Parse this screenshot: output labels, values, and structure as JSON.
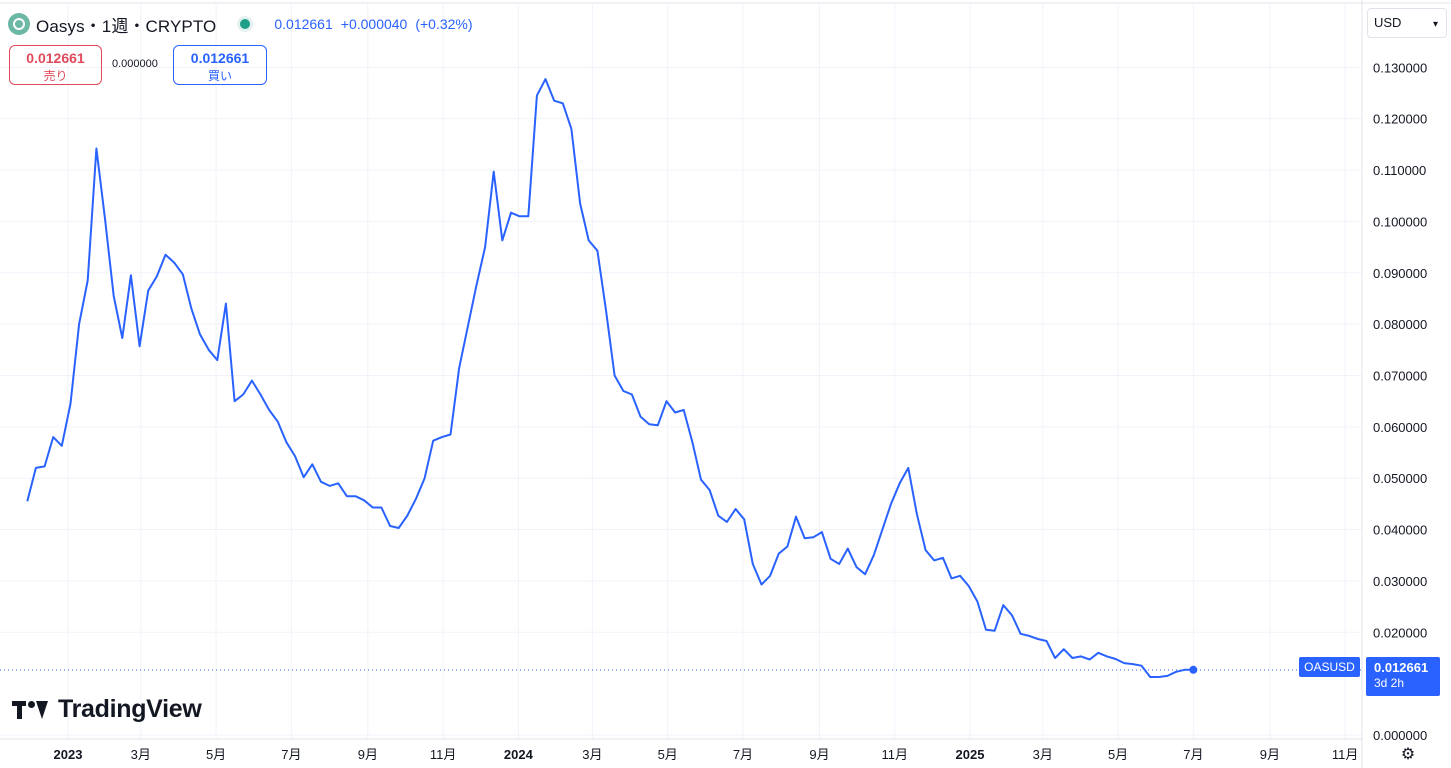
{
  "header": {
    "title": "Oasys・1週・CRYPTO",
    "last": "0.012661",
    "change": "+0.000040",
    "change_pct": "(+0.32%)"
  },
  "trade": {
    "sell_price": "0.012661",
    "sell_label": "売り",
    "spread": "0.000000",
    "buy_price": "0.012661",
    "buy_label": "買い"
  },
  "currency": "USD",
  "brand": "TradingView",
  "price_tag": {
    "symbol": "OASUSD",
    "price": "0.012661",
    "countdown": "3d 2h"
  },
  "icons": {
    "logo": "oasys-logo-icon",
    "settings": "settings-gear-icon",
    "currency_caret": "chevron-down-icon"
  },
  "colors": {
    "line": "#2962ff",
    "grid": "#f0f3fa",
    "text": "#131722",
    "sell": "#e04a5a",
    "live": "#1f9e8a"
  },
  "chart_data": {
    "type": "line",
    "title": "Oasys・1週・CRYPTO",
    "xlabel": "",
    "ylabel": "",
    "ylim": [
      0,
      0.132
    ],
    "grid": true,
    "y_ticks": [
      "0.000000",
      "0.020000",
      "0.030000",
      "0.040000",
      "0.050000",
      "0.060000",
      "0.070000",
      "0.080000",
      "0.090000",
      "0.100000",
      "0.110000",
      "0.120000",
      "0.130000"
    ],
    "x_ticks": [
      {
        "label": "2023",
        "date": "2023-01-01",
        "bold": true
      },
      {
        "label": "3月",
        "date": "2023-03-01"
      },
      {
        "label": "5月",
        "date": "2023-05-01"
      },
      {
        "label": "7月",
        "date": "2023-07-01"
      },
      {
        "label": "9月",
        "date": "2023-09-01"
      },
      {
        "label": "11月",
        "date": "2023-11-01"
      },
      {
        "label": "2024",
        "date": "2024-01-01",
        "bold": true
      },
      {
        "label": "3月",
        "date": "2024-03-01"
      },
      {
        "label": "5月",
        "date": "2024-05-01"
      },
      {
        "label": "7月",
        "date": "2024-07-01"
      },
      {
        "label": "9月",
        "date": "2024-09-01"
      },
      {
        "label": "11月",
        "date": "2024-11-01"
      },
      {
        "label": "2025",
        "date": "2025-01-01",
        "bold": true
      },
      {
        "label": "3月",
        "date": "2025-03-01"
      },
      {
        "label": "5月",
        "date": "2025-05-01"
      },
      {
        "label": "7月",
        "date": "2025-07-01"
      },
      {
        "label": "9月",
        "date": "2025-09-01"
      },
      {
        "label": "11月",
        "date": "2025-11-01"
      }
    ],
    "series": [
      {
        "color": "#2962ff",
        "points": [
          [
            "2022-11-29",
            0.0455
          ],
          [
            "2022-12-06",
            0.052
          ],
          [
            "2022-12-13",
            0.0523
          ],
          [
            "2022-12-20",
            0.058
          ],
          [
            "2022-12-27",
            0.0563
          ],
          [
            "2023-01-03",
            0.0645
          ],
          [
            "2023-01-10",
            0.08
          ],
          [
            "2023-01-17",
            0.0885
          ],
          [
            "2023-01-24",
            0.1142
          ],
          [
            "2023-01-31",
            0.1005
          ],
          [
            "2023-02-07",
            0.0855
          ],
          [
            "2023-02-14",
            0.0773
          ],
          [
            "2023-02-21",
            0.0895
          ],
          [
            "2023-02-28",
            0.0757
          ],
          [
            "2023-03-07",
            0.0865
          ],
          [
            "2023-03-14",
            0.0893
          ],
          [
            "2023-03-21",
            0.0935
          ],
          [
            "2023-03-28",
            0.092
          ],
          [
            "2023-04-04",
            0.0897
          ],
          [
            "2023-04-11",
            0.083
          ],
          [
            "2023-04-18",
            0.078
          ],
          [
            "2023-04-25",
            0.075
          ],
          [
            "2023-05-02",
            0.073
          ],
          [
            "2023-05-09",
            0.084
          ],
          [
            "2023-05-16",
            0.065
          ],
          [
            "2023-05-23",
            0.0663
          ],
          [
            "2023-05-30",
            0.069
          ],
          [
            "2023-06-06",
            0.0663
          ],
          [
            "2023-06-13",
            0.0633
          ],
          [
            "2023-06-20",
            0.061
          ],
          [
            "2023-06-27",
            0.057
          ],
          [
            "2023-07-04",
            0.0543
          ],
          [
            "2023-07-11",
            0.0502
          ],
          [
            "2023-07-18",
            0.0527
          ],
          [
            "2023-07-25",
            0.0493
          ],
          [
            "2023-08-01",
            0.0485
          ],
          [
            "2023-08-08",
            0.049
          ],
          [
            "2023-08-15",
            0.0465
          ],
          [
            "2023-08-22",
            0.0465
          ],
          [
            "2023-08-29",
            0.0457
          ],
          [
            "2023-09-05",
            0.0443
          ],
          [
            "2023-09-12",
            0.0443
          ],
          [
            "2023-09-19",
            0.0407
          ],
          [
            "2023-09-26",
            0.0403
          ],
          [
            "2023-10-03",
            0.0427
          ],
          [
            "2023-10-10",
            0.046
          ],
          [
            "2023-10-17",
            0.05
          ],
          [
            "2023-10-24",
            0.0573
          ],
          [
            "2023-10-31",
            0.058
          ],
          [
            "2023-11-07",
            0.0585
          ],
          [
            "2023-11-14",
            0.0715
          ],
          [
            "2023-11-21",
            0.0795
          ],
          [
            "2023-11-28",
            0.0875
          ],
          [
            "2023-12-05",
            0.095
          ],
          [
            "2023-12-12",
            0.1097
          ],
          [
            "2023-12-19",
            0.0963
          ],
          [
            "2023-12-26",
            0.1017
          ],
          [
            "2024-01-02",
            0.101
          ],
          [
            "2024-01-09",
            0.101
          ],
          [
            "2024-01-16",
            0.1245
          ],
          [
            "2024-01-23",
            0.1277
          ],
          [
            "2024-01-30",
            0.1235
          ],
          [
            "2024-02-06",
            0.123
          ],
          [
            "2024-02-13",
            0.118
          ],
          [
            "2024-02-20",
            0.1035
          ],
          [
            "2024-02-27",
            0.0963
          ],
          [
            "2024-03-05",
            0.0943
          ],
          [
            "2024-03-12",
            0.0827
          ],
          [
            "2024-03-19",
            0.07
          ],
          [
            "2024-03-26",
            0.067
          ],
          [
            "2024-04-02",
            0.0663
          ],
          [
            "2024-04-09",
            0.062
          ],
          [
            "2024-04-16",
            0.0605
          ],
          [
            "2024-04-23",
            0.0603
          ],
          [
            "2024-04-30",
            0.065
          ],
          [
            "2024-05-07",
            0.0628
          ],
          [
            "2024-05-14",
            0.0633
          ],
          [
            "2024-05-21",
            0.057
          ],
          [
            "2024-05-28",
            0.0497
          ],
          [
            "2024-06-04",
            0.0477
          ],
          [
            "2024-06-11",
            0.0427
          ],
          [
            "2024-06-18",
            0.0415
          ],
          [
            "2024-06-25",
            0.044
          ],
          [
            "2024-07-02",
            0.042
          ],
          [
            "2024-07-09",
            0.0333
          ],
          [
            "2024-07-16",
            0.0293
          ],
          [
            "2024-07-23",
            0.031
          ],
          [
            "2024-07-30",
            0.0353
          ],
          [
            "2024-08-06",
            0.0367
          ],
          [
            "2024-08-13",
            0.0425
          ],
          [
            "2024-08-20",
            0.0383
          ],
          [
            "2024-08-27",
            0.0385
          ],
          [
            "2024-09-03",
            0.0395
          ],
          [
            "2024-09-10",
            0.0343
          ],
          [
            "2024-09-17",
            0.0333
          ],
          [
            "2024-09-24",
            0.0363
          ],
          [
            "2024-10-01",
            0.0327
          ],
          [
            "2024-10-08",
            0.0313
          ],
          [
            "2024-10-15",
            0.035
          ],
          [
            "2024-10-22",
            0.04
          ],
          [
            "2024-10-29",
            0.045
          ],
          [
            "2024-11-05",
            0.049
          ],
          [
            "2024-11-12",
            0.052
          ],
          [
            "2024-11-19",
            0.043
          ],
          [
            "2024-11-26",
            0.036
          ],
          [
            "2024-12-03",
            0.034
          ],
          [
            "2024-12-10",
            0.0345
          ],
          [
            "2024-12-17",
            0.0305
          ],
          [
            "2024-12-24",
            0.031
          ],
          [
            "2024-12-31",
            0.029
          ],
          [
            "2025-01-07",
            0.026
          ],
          [
            "2025-01-14",
            0.0205
          ],
          [
            "2025-01-21",
            0.0203
          ],
          [
            "2025-01-28",
            0.0253
          ],
          [
            "2025-02-04",
            0.0233
          ],
          [
            "2025-02-11",
            0.0197
          ],
          [
            "2025-02-18",
            0.0193
          ],
          [
            "2025-02-25",
            0.0187
          ],
          [
            "2025-03-04",
            0.0183
          ],
          [
            "2025-03-11",
            0.015
          ],
          [
            "2025-03-18",
            0.0167
          ],
          [
            "2025-03-25",
            0.015
          ],
          [
            "2025-04-01",
            0.0153
          ],
          [
            "2025-04-08",
            0.0147
          ],
          [
            "2025-04-15",
            0.016
          ],
          [
            "2025-04-22",
            0.0153
          ],
          [
            "2025-04-29",
            0.0148
          ],
          [
            "2025-05-06",
            0.014
          ],
          [
            "2025-05-13",
            0.0138
          ],
          [
            "2025-05-20",
            0.0135
          ],
          [
            "2025-05-27",
            0.0113
          ],
          [
            "2025-06-03",
            0.0113
          ],
          [
            "2025-06-10",
            0.0115
          ],
          [
            "2025-06-17",
            0.0123
          ],
          [
            "2025-06-24",
            0.0127
          ],
          [
            "2025-07-01",
            0.0127
          ]
        ]
      }
    ],
    "last_value": 0.012661
  }
}
